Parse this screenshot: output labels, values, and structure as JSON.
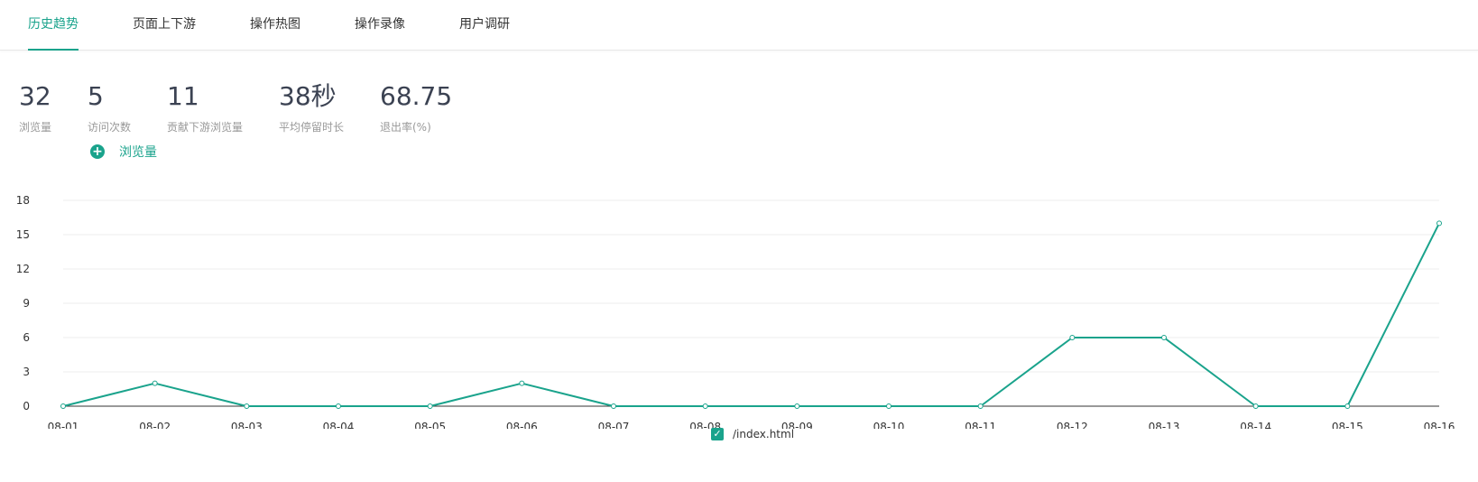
{
  "tabs": [
    {
      "label": "历史趋势",
      "active": true
    },
    {
      "label": "页面上下游",
      "active": false
    },
    {
      "label": "操作热图",
      "active": false
    },
    {
      "label": "操作录像",
      "active": false
    },
    {
      "label": "用户调研",
      "active": false
    }
  ],
  "kpis": [
    {
      "value": "32",
      "label": "浏览量"
    },
    {
      "value": "5",
      "label": "访问次数"
    },
    {
      "value": "11",
      "label": "贡献下游浏览量"
    },
    {
      "value": "38秒",
      "label": "平均停留时长"
    },
    {
      "value": "68.75",
      "label": "退出率(%)"
    }
  ],
  "metric_selector": {
    "label": "浏览量",
    "icon": "plus-circle-icon"
  },
  "legend": {
    "label": "/index.html",
    "checked": true,
    "icon": "checkbox-checked-icon"
  },
  "colors": {
    "accent": "#1aa38c",
    "grid": "#eeeeee",
    "axis": "#333333"
  },
  "chart_data": {
    "type": "line",
    "categories": [
      "08-01",
      "08-02",
      "08-03",
      "08-04",
      "08-05",
      "08-06",
      "08-07",
      "08-08",
      "08-09",
      "08-10",
      "08-11",
      "08-12",
      "08-13",
      "08-14",
      "08-15",
      "08-16"
    ],
    "series": [
      {
        "name": "/index.html",
        "values": [
          0,
          2,
          0,
          0,
          0,
          2,
          0,
          0,
          0,
          0,
          0,
          6,
          6,
          0,
          0,
          16
        ]
      }
    ],
    "yticks": [
      0,
      3,
      6,
      9,
      12,
      15,
      18
    ],
    "ylim": [
      0,
      18
    ],
    "grid": true,
    "legend_position": "bottom-center"
  }
}
